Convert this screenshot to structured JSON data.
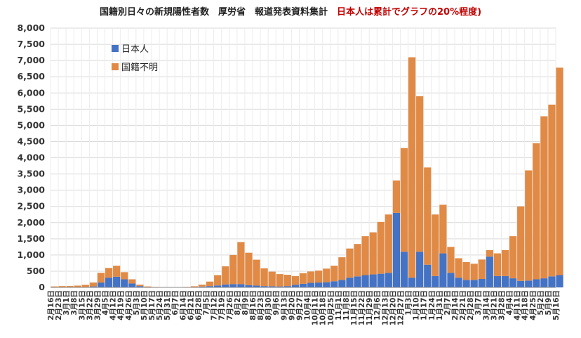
{
  "chart_data": {
    "type": "bar",
    "stacked": true,
    "title_main": "国籍別日々の新規陽性者数　厚労省　報道発表資料集計",
    "title_note": "日本人は累計でグラフの20%程度)",
    "ylim": [
      0,
      8000
    ],
    "yticks": [
      "0",
      "500",
      "1,000",
      "1,500",
      "2,000",
      "2,500",
      "3,000",
      "3,500",
      "4,000",
      "4,500",
      "5,000",
      "5,500",
      "6,000",
      "6,500",
      "7,000",
      "7,500",
      "8,000"
    ],
    "grid": true,
    "legend_position": "top-left",
    "x_tick_labels": [
      "2月16日",
      "2月23日",
      "3月1日",
      "3月8日",
      "3月15日",
      "3月22日",
      "3月29日",
      "4月5日",
      "4月12日",
      "4月19日",
      "4月26日",
      "5月3日",
      "5月10日",
      "5月17日",
      "5月24日",
      "5月31日",
      "6月7日",
      "6月14日",
      "6月21日",
      "6月28日",
      "7月5日",
      "7月12日",
      "7月19日",
      "7月26日",
      "8月2日",
      "8月9日",
      "8月16日",
      "8月23日",
      "8月30日",
      "9月6日",
      "9月13日",
      "9月20日",
      "9月27日",
      "10月4日",
      "10月11日",
      "10月18日",
      "10月25日",
      "11月1日",
      "11月8日",
      "11月15日",
      "11月22日",
      "11月29日",
      "12月6日",
      "12月13日",
      "12月20日",
      "12月27日",
      "1月3日",
      "1月10日",
      "1月17日",
      "1月24日",
      "1月31日",
      "2月7日",
      "2月14日",
      "2月21日",
      "2月28日",
      "3月7日",
      "3月14日",
      "3月21日",
      "3月28日",
      "4月4日",
      "4月11日",
      "4月18日",
      "4月25日",
      "5月2日",
      "5月9日",
      "5月16日"
    ],
    "series": [
      {
        "name": "日本人",
        "color": "#4472c4",
        "weekly_values": [
          0,
          0,
          2,
          5,
          10,
          30,
          150,
          300,
          330,
          250,
          120,
          40,
          10,
          5,
          2,
          2,
          3,
          5,
          10,
          25,
          40,
          60,
          90,
          100,
          100,
          70,
          55,
          40,
          35,
          30,
          40,
          80,
          110,
          140,
          150,
          160,
          190,
          230,
          300,
          340,
          380,
          400,
          420,
          450,
          2300,
          1100,
          300,
          1100,
          700,
          350,
          1050,
          450,
          300,
          230,
          230,
          260,
          950,
          350,
          350,
          280,
          200,
          210,
          250,
          280,
          340,
          380
        ]
      },
      {
        "name": "国籍不明",
        "color": "#e08a45",
        "weekly_values": [
          30,
          40,
          40,
          50,
          70,
          120,
          300,
          300,
          340,
          220,
          130,
          45,
          20,
          10,
          5,
          5,
          5,
          10,
          25,
          60,
          140,
          320,
          560,
          900,
          1300,
          1000,
          800,
          550,
          450,
          380,
          350,
          270,
          330,
          350,
          370,
          420,
          480,
          700,
          900,
          1000,
          1200,
          1300,
          1600,
          1800,
          1000,
          3200,
          6800,
          4800,
          3000,
          1900,
          1500,
          800,
          600,
          550,
          500,
          600,
          200,
          700,
          800,
          1300,
          2300,
          3400,
          4200,
          5000,
          5300,
          6400
        ]
      }
    ]
  }
}
